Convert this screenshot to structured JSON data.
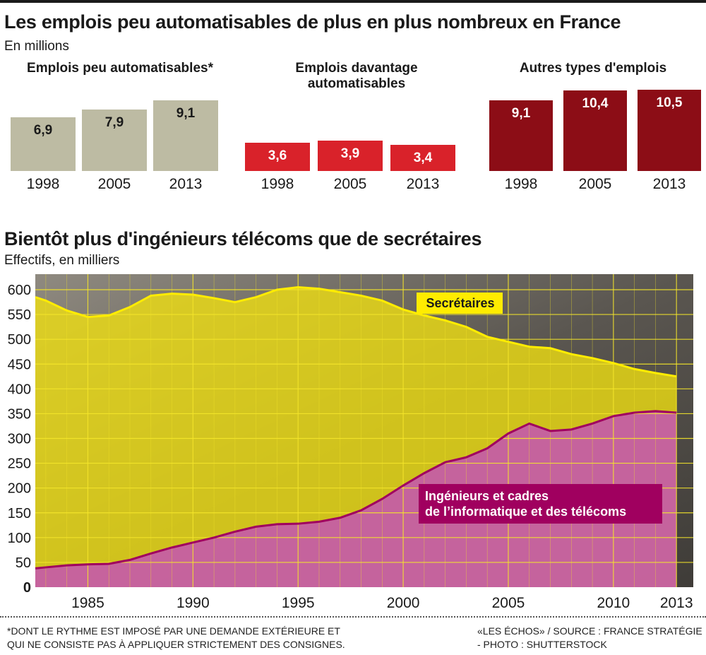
{
  "header": {
    "title": "Les emplois peu automatisables de plus en plus nombreux en France",
    "subtitle": "En millions"
  },
  "chart_data": [
    {
      "type": "bar",
      "title": "Emplois peu automatisables*",
      "categories": [
        "1998",
        "2005",
        "2013"
      ],
      "values": [
        6.9,
        7.9,
        9.1
      ],
      "value_labels": [
        "6,9",
        "7,9",
        "9,1"
      ],
      "unit": "En millions",
      "color": "#bdbba3"
    },
    {
      "type": "bar",
      "title": "Emplois davantage automatisables",
      "categories": [
        "1998",
        "2005",
        "2013"
      ],
      "values": [
        3.6,
        3.9,
        3.4
      ],
      "value_labels": [
        "3,6",
        "3,9",
        "3,4"
      ],
      "unit": "En millions",
      "color": "#d9222a"
    },
    {
      "type": "bar",
      "title": "Autres types d'emplois",
      "categories": [
        "1998",
        "2005",
        "2013"
      ],
      "values": [
        9.1,
        10.4,
        10.5
      ],
      "value_labels": [
        "9,1",
        "10,4",
        "10,5"
      ],
      "unit": "En millions",
      "color": "#8c0d16"
    },
    {
      "type": "area",
      "title": "Bientôt plus d'ingénieurs télécoms que de secrétaires",
      "subtitle": "Effectifs, en milliers",
      "x_ticks": [
        "1985",
        "1990",
        "1995",
        "2000",
        "2005",
        "2010",
        "2013"
      ],
      "xlim": [
        1982.5,
        2013.8
      ],
      "y_ticks": [
        "0",
        "50",
        "100",
        "150",
        "200",
        "250",
        "300",
        "350",
        "400",
        "450",
        "500",
        "550",
        "600"
      ],
      "ylim": [
        0,
        600
      ],
      "grid": true,
      "series": [
        {
          "name": "Secrétaires",
          "color": "#f2e10f",
          "x": [
            1982.5,
            1983,
            1984,
            1985,
            1986,
            1987,
            1988,
            1989,
            1990,
            1991,
            1992,
            1993,
            1994,
            1995,
            1996,
            1997,
            1998,
            1999,
            2000,
            2001,
            2002,
            2003,
            2004,
            2005,
            2006,
            2007,
            2008,
            2009,
            2010,
            2011,
            2012,
            2013
          ],
          "values": [
            585,
            578,
            558,
            545,
            548,
            565,
            588,
            592,
            590,
            583,
            575,
            585,
            600,
            605,
            602,
            595,
            588,
            578,
            560,
            548,
            538,
            525,
            505,
            495,
            485,
            482,
            470,
            462,
            452,
            440,
            432,
            425
          ]
        },
        {
          "name": "Ingénieurs et cadres de l’informatique et des télécoms",
          "color": "#a0005f",
          "x": [
            1982.5,
            1983,
            1984,
            1985,
            1986,
            1987,
            1988,
            1989,
            1990,
            1991,
            1992,
            1993,
            1994,
            1995,
            1996,
            1997,
            1998,
            1999,
            2000,
            2001,
            2002,
            2003,
            2004,
            2005,
            2006,
            2007,
            2008,
            2009,
            2010,
            2011,
            2012,
            2013
          ],
          "values": [
            38,
            40,
            44,
            46,
            47,
            55,
            68,
            80,
            90,
            100,
            112,
            122,
            127,
            128,
            132,
            140,
            155,
            178,
            205,
            230,
            252,
            262,
            280,
            310,
            330,
            315,
            318,
            330,
            345,
            352,
            355,
            352
          ]
        }
      ]
    }
  ],
  "annotations": {
    "secretaires": "Secrétaires",
    "ingenieurs_line1": "Ingénieurs et cadres",
    "ingenieurs_line2": "de l’informatique et des télécoms"
  },
  "footer": {
    "note_line1": "*DONT LE RYTHME EST IMPOSÉ PAR UNE DEMANDE EXTÉRIEURE ET",
    "note_line2": "QUI NE CONSISTE PAS À APPLIQUER STRICTEMENT DES CONSIGNES.",
    "source_line1": "«LES ÉCHOS» / SOURCE : FRANCE STRATÉGIE",
    "source_line2": "- PHOTO : SHUTTERSTOCK"
  }
}
